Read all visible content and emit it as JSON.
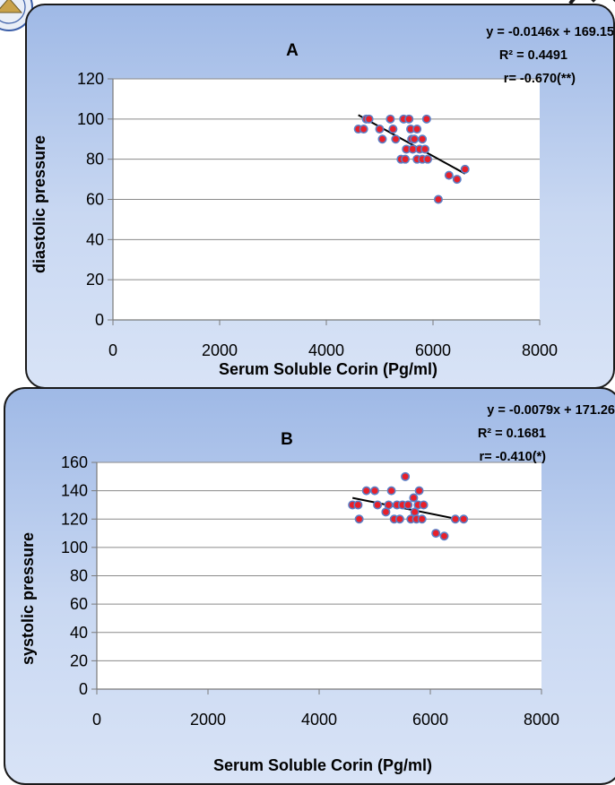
{
  "chart_data": [
    {
      "type": "scatter",
      "panel_label": "A",
      "xlabel": "Serum Soluble Corin (Pg/ml)",
      "ylabel": "diastolic pressure",
      "xlim": [
        0,
        8000
      ],
      "ylim": [
        0,
        120
      ],
      "xticks": [
        0,
        2000,
        4000,
        6000,
        8000
      ],
      "yticks": [
        0,
        20,
        40,
        60,
        80,
        100,
        120
      ],
      "grid": "horizontal",
      "annotations": [
        "y = -0.0146x + 169.15",
        "R² = 0.4491",
        "r= -0.670(**)"
      ],
      "trendline": {
        "slope": -0.0146,
        "intercept": 169.15,
        "x_range": [
          4600,
          6600
        ]
      },
      "marker_color": "#e8202a",
      "marker_edge_color": "#5b7fc6",
      "points": [
        {
          "x": 4600,
          "y": 95
        },
        {
          "x": 4700,
          "y": 95
        },
        {
          "x": 4750,
          "y": 100
        },
        {
          "x": 4800,
          "y": 100
        },
        {
          "x": 5000,
          "y": 95
        },
        {
          "x": 5050,
          "y": 90
        },
        {
          "x": 5200,
          "y": 100
        },
        {
          "x": 5250,
          "y": 95
        },
        {
          "x": 5300,
          "y": 90
        },
        {
          "x": 5400,
          "y": 80
        },
        {
          "x": 5450,
          "y": 100
        },
        {
          "x": 5480,
          "y": 80
        },
        {
          "x": 5500,
          "y": 85
        },
        {
          "x": 5550,
          "y": 100
        },
        {
          "x": 5580,
          "y": 95
        },
        {
          "x": 5600,
          "y": 90
        },
        {
          "x": 5620,
          "y": 85
        },
        {
          "x": 5650,
          "y": 90
        },
        {
          "x": 5700,
          "y": 80
        },
        {
          "x": 5700,
          "y": 95
        },
        {
          "x": 5750,
          "y": 85
        },
        {
          "x": 5800,
          "y": 90
        },
        {
          "x": 5800,
          "y": 80
        },
        {
          "x": 5850,
          "y": 85
        },
        {
          "x": 5880,
          "y": 100
        },
        {
          "x": 5900,
          "y": 80
        },
        {
          "x": 6100,
          "y": 60
        },
        {
          "x": 6300,
          "y": 72
        },
        {
          "x": 6450,
          "y": 70
        },
        {
          "x": 6600,
          "y": 75
        }
      ]
    },
    {
      "type": "scatter",
      "panel_label": "B",
      "xlabel": "Serum Soluble Corin (Pg/ml)",
      "ylabel": "systolic pressure",
      "xlim": [
        0,
        8000
      ],
      "ylim": [
        0,
        160
      ],
      "xticks": [
        0,
        2000,
        4000,
        6000,
        8000
      ],
      "yticks": [
        0,
        20,
        40,
        60,
        80,
        100,
        120,
        140,
        160
      ],
      "grid": "horizontal",
      "annotations": [
        "y = -0.0079x + 171.26",
        "R² = 0.1681",
        "r= -0.410(*)"
      ],
      "trendline": {
        "slope": -0.0079,
        "intercept": 171.26,
        "x_range": [
          4600,
          6600
        ]
      },
      "marker_color": "#e8202a",
      "marker_edge_color": "#5b7fc6",
      "points": [
        {
          "x": 4600,
          "y": 130
        },
        {
          "x": 4700,
          "y": 130
        },
        {
          "x": 4720,
          "y": 120
        },
        {
          "x": 4850,
          "y": 140
        },
        {
          "x": 5000,
          "y": 140
        },
        {
          "x": 5050,
          "y": 130
        },
        {
          "x": 5200,
          "y": 125
        },
        {
          "x": 5250,
          "y": 130
        },
        {
          "x": 5300,
          "y": 140
        },
        {
          "x": 5350,
          "y": 120
        },
        {
          "x": 5400,
          "y": 130
        },
        {
          "x": 5450,
          "y": 120
        },
        {
          "x": 5500,
          "y": 130
        },
        {
          "x": 5550,
          "y": 150
        },
        {
          "x": 5600,
          "y": 130
        },
        {
          "x": 5650,
          "y": 120
        },
        {
          "x": 5700,
          "y": 135
        },
        {
          "x": 5720,
          "y": 125
        },
        {
          "x": 5750,
          "y": 120
        },
        {
          "x": 5780,
          "y": 130
        },
        {
          "x": 5800,
          "y": 140
        },
        {
          "x": 5850,
          "y": 120
        },
        {
          "x": 5880,
          "y": 130
        },
        {
          "x": 6100,
          "y": 110
        },
        {
          "x": 6250,
          "y": 108
        },
        {
          "x": 6450,
          "y": 120
        },
        {
          "x": 6600,
          "y": 120
        }
      ]
    }
  ]
}
